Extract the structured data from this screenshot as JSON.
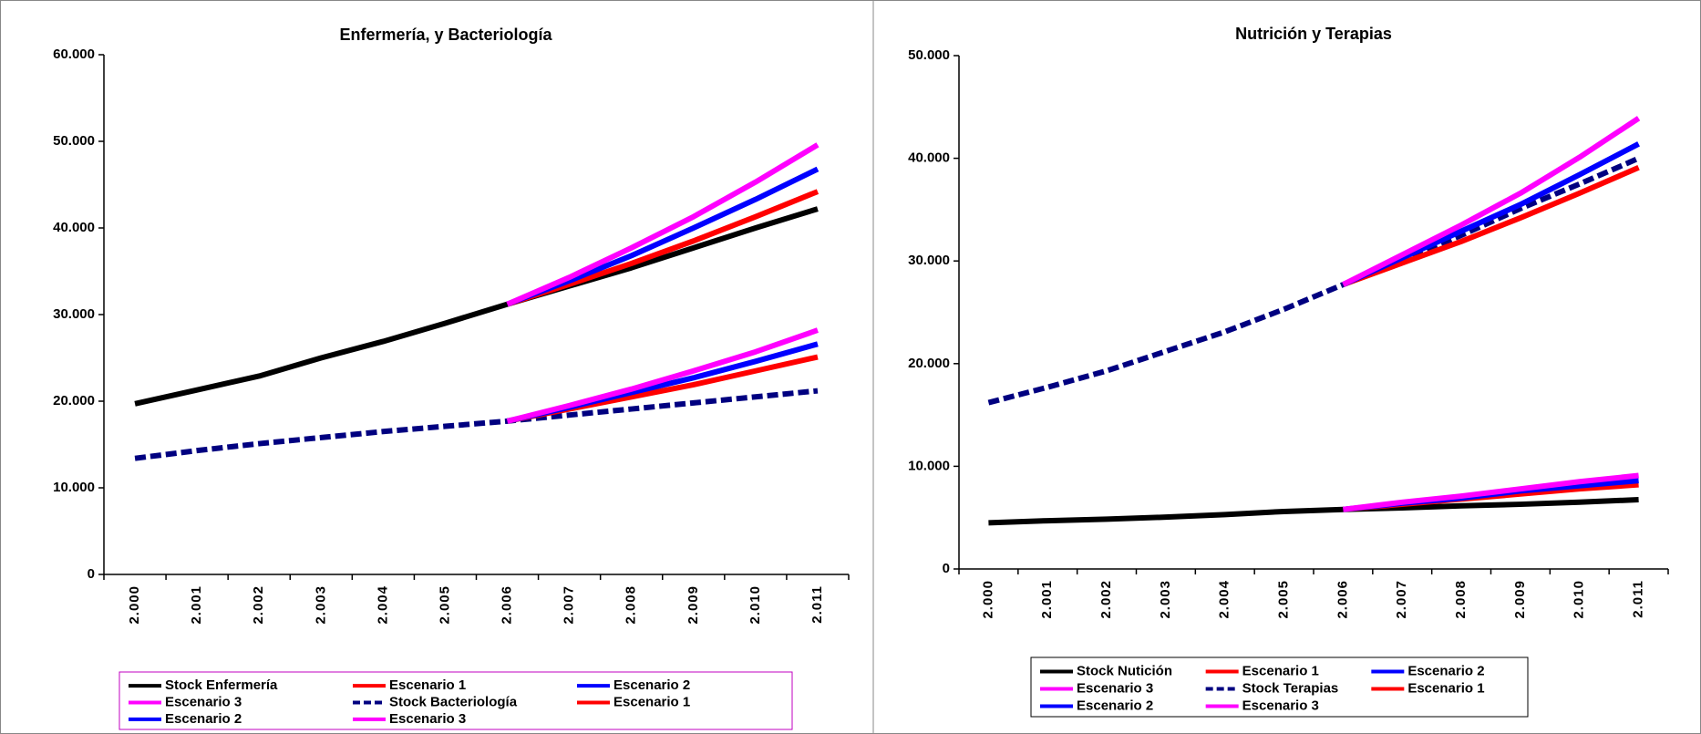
{
  "chart_data": [
    {
      "type": "line",
      "title": "Enfermería, y Bacteriología",
      "categories": [
        "2.000",
        "2.001",
        "2.002",
        "2.003",
        "2.004",
        "2.005",
        "2.006",
        "2.007",
        "2.008",
        "2.009",
        "2.010",
        "2.011"
      ],
      "ylim": [
        0,
        60000
      ],
      "yticks": [
        0,
        {
          "value": 10000,
          "label": "10.000"
        },
        {
          "value": 20000,
          "label": "20.000"
        },
        {
          "value": 30000,
          "label": "30.000"
        },
        {
          "value": 40000,
          "label": "40.000"
        },
        {
          "value": 50000,
          "label": "50.000"
        },
        {
          "value": 60000,
          "label": "60.000"
        }
      ],
      "series": [
        {
          "name": "Stock Enfermería",
          "color": "#000000",
          "style": "solid",
          "values": [
            19700,
            21300,
            22900,
            25000,
            26900,
            29000,
            31200,
            33300,
            35400,
            37700,
            40000,
            42200
          ]
        },
        {
          "name": "Escenario 1",
          "color": "#ff0000",
          "style": "solid",
          "values": [
            null,
            null,
            null,
            null,
            null,
            null,
            31200,
            33500,
            35900,
            38500,
            41300,
            44200
          ]
        },
        {
          "name": "Escenario 2",
          "color": "#0000ff",
          "style": "solid",
          "values": [
            null,
            null,
            null,
            null,
            null,
            null,
            31200,
            33900,
            36800,
            40000,
            43300,
            46800
          ]
        },
        {
          "name": "Escenario 3",
          "color": "#ff00ff",
          "style": "solid",
          "values": [
            null,
            null,
            null,
            null,
            null,
            null,
            31200,
            34300,
            37700,
            41300,
            45300,
            49600
          ]
        },
        {
          "name": "Stock Bacteriología",
          "color": "#000080",
          "style": "dashed",
          "values": [
            13400,
            14300,
            15100,
            15800,
            16500,
            17100,
            17700,
            18400,
            19100,
            19800,
            20500,
            21200
          ]
        },
        {
          "name": "Escenario 1",
          "color": "#ff0000",
          "style": "solid",
          "values": [
            null,
            null,
            null,
            null,
            null,
            null,
            17700,
            19100,
            20500,
            21900,
            23500,
            25100
          ]
        },
        {
          "name": "Escenario 2",
          "color": "#0000ff",
          "style": "solid",
          "values": [
            null,
            null,
            null,
            null,
            null,
            null,
            17700,
            19300,
            21000,
            22700,
            24600,
            26600
          ]
        },
        {
          "name": "Escenario 3",
          "color": "#ff00ff",
          "style": "solid",
          "values": [
            null,
            null,
            null,
            null,
            null,
            null,
            17700,
            19500,
            21400,
            23500,
            25700,
            28200
          ]
        }
      ]
    },
    {
      "type": "line",
      "title": "Nutrición y Terapias",
      "categories": [
        "2.000",
        "2.001",
        "2.002",
        "2.003",
        "2.004",
        "2.005",
        "2.006",
        "2.007",
        "2.008",
        "2.009",
        "2.010",
        "2.011"
      ],
      "ylim": [
        0,
        50000
      ],
      "yticks": [
        0,
        {
          "value": 10000,
          "label": "10.000"
        },
        {
          "value": 20000,
          "label": "20.000"
        },
        {
          "value": 30000,
          "label": "30.000"
        },
        {
          "value": 40000,
          "label": "40.000"
        },
        {
          "value": 50000,
          "label": "50.000"
        }
      ],
      "series": [
        {
          "name": "Stock Nutición",
          "color": "#000000",
          "style": "solid",
          "values": [
            4500,
            4700,
            4850,
            5050,
            5300,
            5600,
            5800,
            5950,
            6150,
            6300,
            6500,
            6750
          ]
        },
        {
          "name": "Escenario 1",
          "color": "#ff0000",
          "style": "solid",
          "values": [
            null,
            null,
            null,
            null,
            null,
            null,
            5800,
            6300,
            6800,
            7300,
            7800,
            8200
          ]
        },
        {
          "name": "Escenario 2",
          "color": "#0000ff",
          "style": "solid",
          "values": [
            null,
            null,
            null,
            null,
            null,
            null,
            5800,
            6400,
            6900,
            7600,
            8100,
            8600
          ]
        },
        {
          "name": "Escenario 3",
          "color": "#ff00ff",
          "style": "solid",
          "values": [
            null,
            null,
            null,
            null,
            null,
            null,
            5800,
            6500,
            7100,
            7800,
            8500,
            9100
          ]
        },
        {
          "name": "Stock Terapias",
          "color": "#000080",
          "style": "dashed",
          "values": [
            16200,
            17700,
            19300,
            21200,
            23100,
            25300,
            27700,
            30100,
            32500,
            35100,
            37500,
            40000
          ]
        },
        {
          "name": "Escenario 1",
          "color": "#ff0000",
          "style": "solid",
          "values": [
            null,
            null,
            null,
            null,
            null,
            null,
            27700,
            29800,
            31900,
            34200,
            36600,
            39100
          ]
        },
        {
          "name": "Escenario 2",
          "color": "#0000ff",
          "style": "solid",
          "values": [
            null,
            null,
            null,
            null,
            null,
            null,
            27700,
            30300,
            32900,
            35500,
            38400,
            41400
          ]
        },
        {
          "name": "Escenario 3",
          "color": "#ff00ff",
          "style": "solid",
          "values": [
            null,
            null,
            null,
            null,
            null,
            null,
            27700,
            30600,
            33500,
            36600,
            40100,
            43900
          ]
        }
      ]
    }
  ]
}
